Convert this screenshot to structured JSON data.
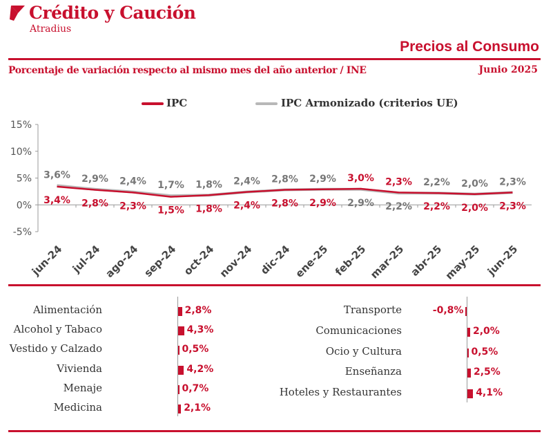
{
  "brand": {
    "name": "Crédito y Caución",
    "sub": "Atradius"
  },
  "header": {
    "title": "Precios al Consumo",
    "subtitle": "Porcentaje de variación respecto al mismo mes del año anterior / INE",
    "date": "Junio  2025"
  },
  "colors": {
    "accent": "#c8102e",
    "ipca": "#b8b8b8",
    "text": "#333333",
    "axis": "#999999"
  },
  "chart_data": {
    "type": "line",
    "x": [
      "jun-24",
      "jul-24",
      "ago-24",
      "sep-24",
      "oct-24",
      "nov-24",
      "dic-24",
      "ene-25",
      "feb-25",
      "mar-25",
      "abr-25",
      "may-25",
      "jun-25"
    ],
    "series": [
      {
        "name": "IPC",
        "values": [
          3.4,
          2.8,
          2.3,
          1.5,
          1.8,
          2.4,
          2.8,
          2.9,
          3.0,
          2.3,
          2.2,
          2.0,
          2.3
        ],
        "labels": [
          "3,4%",
          "2,8%",
          "2,3%",
          "1,5%",
          "1,8%",
          "2,4%",
          "2,8%",
          "2,9%",
          "3,0%",
          "2,3%",
          "2,2%",
          "2,0%",
          "2,3%"
        ]
      },
      {
        "name": "IPC Armonizado (criterios UE)",
        "values": [
          3.6,
          2.9,
          2.4,
          1.7,
          1.8,
          2.4,
          2.8,
          2.9,
          2.9,
          2.2,
          2.2,
          2.0,
          2.3
        ],
        "labels": [
          "3,6%",
          "2,9%",
          "2,4%",
          "1,7%",
          "1,8%",
          "2,4%",
          "2,8%",
          "2,9%",
          "2,9%",
          "2,2%",
          "2,2%",
          "2,0%",
          "2,3%"
        ]
      }
    ],
    "y_ticks": [
      "15%",
      "10%",
      "5%",
      "0%",
      "-5%"
    ],
    "ylim": [
      -5,
      15
    ],
    "grid": false,
    "legend": "top-center"
  },
  "categories_left": [
    {
      "label": "Alimentación",
      "value": 2.8,
      "text": "2,8%"
    },
    {
      "label": "Alcohol y Tabaco",
      "value": 4.3,
      "text": "4,3%"
    },
    {
      "label": "Vestido y Calzado",
      "value": 0.5,
      "text": "0,5%"
    },
    {
      "label": "Vivienda",
      "value": 4.2,
      "text": "4,2%"
    },
    {
      "label": "Menaje",
      "value": 0.7,
      "text": "0,7%"
    },
    {
      "label": "Medicina",
      "value": 2.1,
      "text": "2,1%"
    }
  ],
  "categories_right": [
    {
      "label": "Transporte",
      "value": -0.8,
      "text": "-0,8%"
    },
    {
      "label": "Comunicaciones",
      "value": 2.0,
      "text": "2,0%"
    },
    {
      "label": "Ocio y Cultura",
      "value": 0.5,
      "text": "0,5%"
    },
    {
      "label": "Enseñanza",
      "value": 2.5,
      "text": "2,5%"
    },
    {
      "label": "Hoteles y Restaurantes",
      "value": 4.1,
      "text": "4,1%"
    }
  ]
}
